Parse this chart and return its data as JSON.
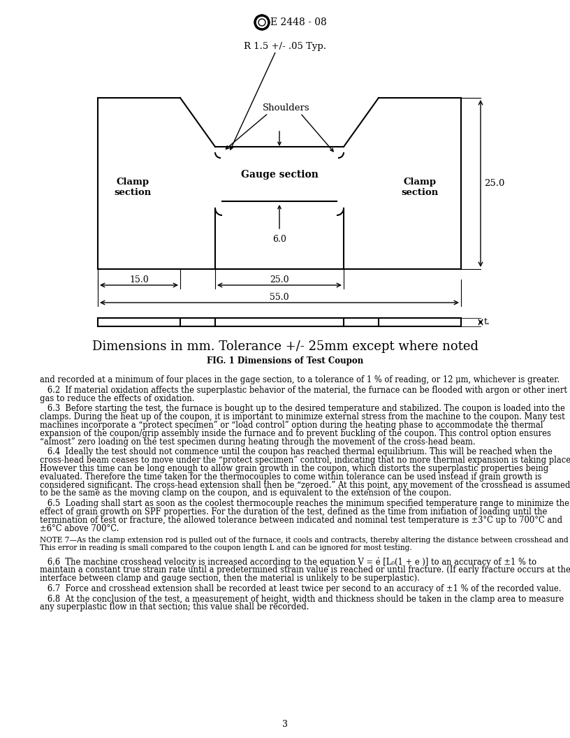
{
  "page_width": 8.16,
  "page_height": 10.56,
  "dpi": 100,
  "bg_color": "#ffffff",
  "header_std": "E 2448 - 08",
  "diagram_title_line1": "R 1.5 +/- .05 Typ.",
  "diagram_label_shoulders": "Shoulders",
  "diagram_label_clamp_left": "Clamp\nsection",
  "diagram_label_gauge": "Gauge section",
  "diagram_label_clamp_right": "Clamp\nsection",
  "dim_25": "25.0",
  "dim_6": "6.0",
  "dim_15": "15.0",
  "dim_25b": "25.0",
  "dim_55": "55.0",
  "dim_t": "t.",
  "fig_caption_large": "Dimensions in mm. Tolerance +/- 25mm except where noted",
  "fig_caption_small": "FIG. 1 Dimensions of Test Coupon",
  "body_text": [
    "and recorded at a minimum of four places in the gage section, to a tolerance of 1 % of reading, or 12 μm, whichever is greater.",
    "   6.2  If material oxidation affects the superplastic behavior of the material, the furnace can be flooded with argon or other inert\ngas to reduce the effects of oxidation.",
    "   6.3  Before starting the test, the furnace is bought up to the desired temperature and stabilized. The coupon is loaded into the\nclamps. During the heat up of the coupon, it is important to minimize external stress from the machine to the coupon. Many test\nmachines incorporate a “protect specimen” or “load control” option during the heating phase to accommodate the thermal\nexpansion of the coupon/grip assembly inside the furnace and to prevent buckling of the coupon. This control option ensures\n“almost” zero loading on the test specimen during heating through the movement of the cross-head beam.",
    "   6.4  Ideally the test should not commence until the coupon has reached thermal equilibrium. This will be reached when the\ncross-head beam ceases to move under the “protect specimen” control, indicating that no more thermal expansion is taking place.\nHowever this time can be long enough to allow grain growth in the coupon, which distorts the superplastic properties being\nevaluated. Therefore the time taken for the thermocouples to come within tolerance can be used instead if grain growth is\nconsidered significant. The cross-head extension shall then be “zeroed.” At this point, any movement of the crosshead is assumed\nto be the same as the moving clamp on the coupon, and is equivalent to the extension of the coupon.",
    "   6.5  Loading shall start as soon as the coolest thermocouple reaches the minimum specified temperature range to minimize the\neffect of grain growth on SPF properties. For the duration of the test, defined as the time from initiation of loading until the\ntermination of test or fracture, the allowed tolerance between indicated and nominal test temperature is ±3°C up to 700°C and\n±6°C above 700°C."
  ],
  "note_text": "NOTE 7—As the clamp extension rod is pulled out of the furnace, it cools and contracts, thereby altering the distance between crosshead and clamp.\nThis error in reading is small compared to the coupon length L and can be ignored for most testing.",
  "para_66": "   6.6  The machine crosshead velocity is increased according to the equation V = ė [L₀(1 + e )] to an accuracy of ±1 % to\nmaintain a constant true strain rate until a predetermined strain value is reached or until fracture. (If early fracture occurs at the\ninterface between clamp and gauge section, then the material is unlikely to be superplastic).",
  "para_67": "   6.7  Force and crosshead extension shall be recorded at least twice per second to an accuracy of ±1 % of the recorded value.",
  "para_68": "   6.8  At the conclusion of the test, a measurement of height, width and thickness should be taken in the clamp area to measure\nany superplastic flow in that section; this value shall be recorded.",
  "page_number": "3"
}
